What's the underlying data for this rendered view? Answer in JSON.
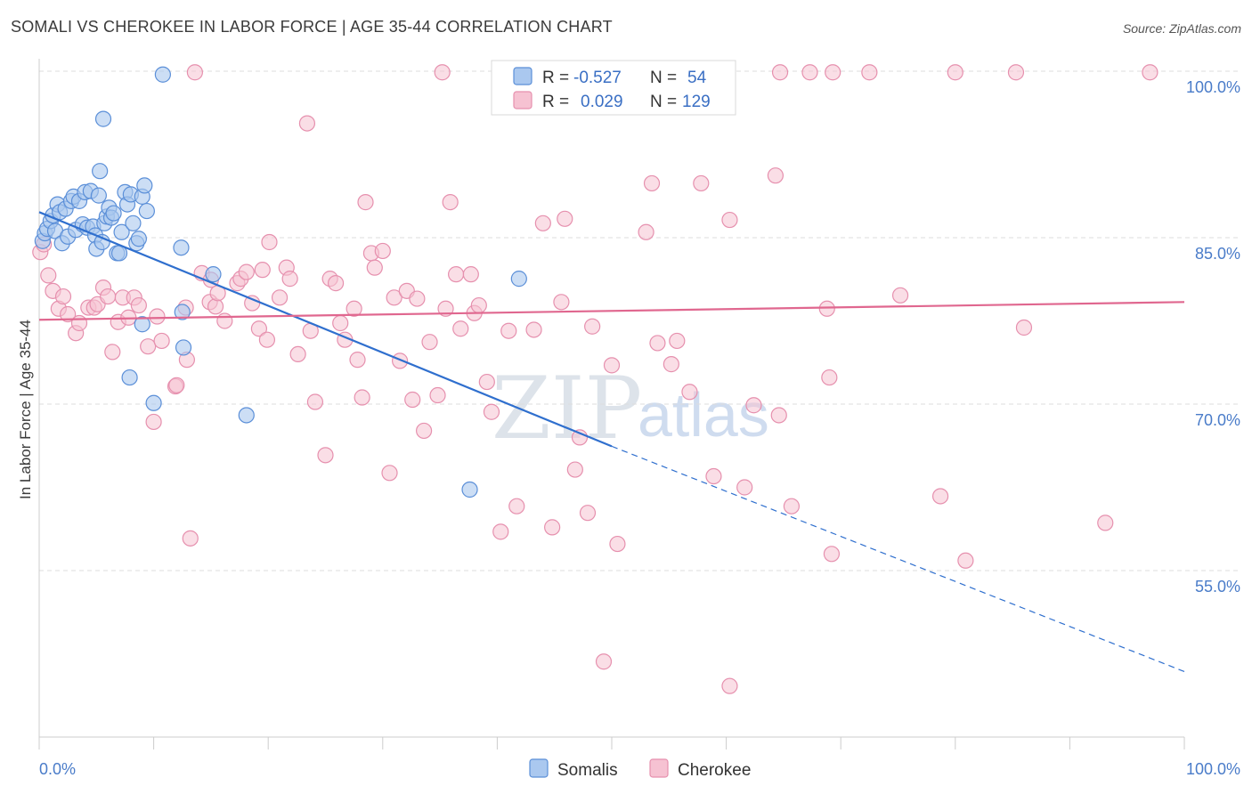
{
  "title": "SOMALI VS CHEROKEE IN LABOR FORCE | AGE 35-44 CORRELATION CHART",
  "source": "Source: ZipAtlas.com",
  "watermark": {
    "zip": "ZIP",
    "atlas": "atlas"
  },
  "legend_top": {
    "rows": [
      {
        "r_label": "R =",
        "r_value": "-0.527",
        "n_label": "N =",
        "n_value": "54"
      },
      {
        "r_label": "R =",
        "r_value": "0.029",
        "n_label": "N =",
        "n_value": "129"
      }
    ]
  },
  "legend_bottom": {
    "somalis": "Somalis",
    "cherokee": "Cherokee"
  },
  "colors": {
    "somalis_fill": "#aac8ef",
    "somalis_stroke": "#5b8fd8",
    "somalis_line": "#2f6fce",
    "cherokee_fill": "#f6c2d2",
    "cherokee_stroke": "#e690ae",
    "cherokee_line": "#e0678f",
    "tick_text": "#4a7cc9",
    "grid": "#dddddd"
  },
  "chart_data": {
    "type": "scatter",
    "title": "SOMALI VS CHEROKEE IN LABOR FORCE | AGE 35-44 CORRELATION CHART",
    "xlabel": "",
    "ylabel": "In Labor Force | Age 35-44",
    "xlim": [
      0,
      100
    ],
    "ylim": [
      40,
      100
    ],
    "x_tick_labels": [
      "0.0%",
      "100.0%"
    ],
    "y_tick_labels": [
      "100.0%",
      "85.0%",
      "70.0%",
      "55.0%"
    ],
    "y_tick_values": [
      100,
      85,
      70,
      55
    ],
    "grid": true,
    "legend_position": "top-center",
    "series": [
      {
        "name": "Somalis",
        "R": -0.527,
        "N": 54,
        "trend": {
          "x0": 0,
          "y0": 87.3,
          "x1": 50,
          "y1": 66.2,
          "dashed_to_x": 100,
          "dashed_to_y": 45.9
        },
        "points": [
          [
            0.3,
            84.7
          ],
          [
            0.5,
            85.4
          ],
          [
            0.7,
            85.8
          ],
          [
            1.0,
            86.5
          ],
          [
            1.2,
            87.0
          ],
          [
            1.4,
            85.6
          ],
          [
            1.6,
            88.0
          ],
          [
            1.8,
            87.3
          ],
          [
            2.0,
            84.5
          ],
          [
            2.3,
            87.6
          ],
          [
            2.5,
            85.1
          ],
          [
            2.8,
            88.3
          ],
          [
            3.0,
            88.7
          ],
          [
            3.2,
            85.7
          ],
          [
            3.5,
            88.3
          ],
          [
            3.8,
            86.2
          ],
          [
            4.0,
            89.1
          ],
          [
            4.2,
            85.9
          ],
          [
            4.5,
            89.2
          ],
          [
            4.7,
            86.0
          ],
          [
            4.9,
            85.2
          ],
          [
            5.0,
            84.0
          ],
          [
            5.2,
            88.8
          ],
          [
            5.5,
            84.6
          ],
          [
            5.7,
            86.3
          ],
          [
            5.9,
            86.9
          ],
          [
            6.1,
            87.7
          ],
          [
            6.3,
            86.8
          ],
          [
            6.5,
            87.2
          ],
          [
            6.8,
            83.6
          ],
          [
            7.0,
            83.6
          ],
          [
            7.2,
            85.5
          ],
          [
            7.5,
            89.1
          ],
          [
            7.7,
            88.0
          ],
          [
            8.0,
            88.9
          ],
          [
            8.2,
            86.3
          ],
          [
            8.5,
            84.5
          ],
          [
            8.7,
            84.9
          ],
          [
            9.0,
            88.7
          ],
          [
            9.2,
            89.7
          ],
          [
            9.4,
            87.4
          ],
          [
            5.6,
            95.7
          ],
          [
            5.3,
            91.0
          ],
          [
            10.8,
            99.7
          ],
          [
            12.4,
            84.1
          ],
          [
            12.5,
            78.3
          ],
          [
            12.6,
            75.1
          ],
          [
            15.2,
            81.7
          ],
          [
            9.0,
            77.2
          ],
          [
            7.9,
            72.4
          ],
          [
            10.0,
            70.1
          ],
          [
            18.1,
            69.0
          ],
          [
            41.9,
            81.3
          ],
          [
            37.6,
            62.3
          ]
        ]
      },
      {
        "name": "Cherokee",
        "R": 0.029,
        "N": 129,
        "trend": {
          "x0": 0,
          "y0": 77.6,
          "x1": 100,
          "y1": 79.2
        },
        "points": [
          [
            0.1,
            83.7
          ],
          [
            0.4,
            84.4
          ],
          [
            0.8,
            81.6
          ],
          [
            1.2,
            80.2
          ],
          [
            1.7,
            78.6
          ],
          [
            2.1,
            79.7
          ],
          [
            2.5,
            78.1
          ],
          [
            3.2,
            76.4
          ],
          [
            3.5,
            77.3
          ],
          [
            4.3,
            78.7
          ],
          [
            4.8,
            78.7
          ],
          [
            5.1,
            79.0
          ],
          [
            5.6,
            80.5
          ],
          [
            6.0,
            79.7
          ],
          [
            6.4,
            74.7
          ],
          [
            6.9,
            77.4
          ],
          [
            7.3,
            79.6
          ],
          [
            7.8,
            77.8
          ],
          [
            8.3,
            79.6
          ],
          [
            8.7,
            78.9
          ],
          [
            9.5,
            75.2
          ],
          [
            10.0,
            68.4
          ],
          [
            10.3,
            77.9
          ],
          [
            10.7,
            75.7
          ],
          [
            11.9,
            71.6
          ],
          [
            12.0,
            71.7
          ],
          [
            12.8,
            78.7
          ],
          [
            12.9,
            74.0
          ],
          [
            13.2,
            57.9
          ],
          [
            14.2,
            81.8
          ],
          [
            14.9,
            79.2
          ],
          [
            15.0,
            81.2
          ],
          [
            15.4,
            78.8
          ],
          [
            15.6,
            80.0
          ],
          [
            16.2,
            77.5
          ],
          [
            17.3,
            80.9
          ],
          [
            17.6,
            81.3
          ],
          [
            18.1,
            81.9
          ],
          [
            18.6,
            79.1
          ],
          [
            19.2,
            76.8
          ],
          [
            19.5,
            82.1
          ],
          [
            19.9,
            75.8
          ],
          [
            20.1,
            84.6
          ],
          [
            21.0,
            79.6
          ],
          [
            21.6,
            82.3
          ],
          [
            21.9,
            81.3
          ],
          [
            22.6,
            74.5
          ],
          [
            23.4,
            95.3
          ],
          [
            23.7,
            76.6
          ],
          [
            24.1,
            70.2
          ],
          [
            25.0,
            65.4
          ],
          [
            25.4,
            81.3
          ],
          [
            25.9,
            80.9
          ],
          [
            26.3,
            77.3
          ],
          [
            26.7,
            75.8
          ],
          [
            27.5,
            78.6
          ],
          [
            27.8,
            74.0
          ],
          [
            28.2,
            70.6
          ],
          [
            28.5,
            88.2
          ],
          [
            29.0,
            83.6
          ],
          [
            29.3,
            82.3
          ],
          [
            30.0,
            83.8
          ],
          [
            30.6,
            63.8
          ],
          [
            31.0,
            79.6
          ],
          [
            31.5,
            73.9
          ],
          [
            32.1,
            80.2
          ],
          [
            32.6,
            70.4
          ],
          [
            33.0,
            79.5
          ],
          [
            33.6,
            67.6
          ],
          [
            34.1,
            75.6
          ],
          [
            34.8,
            70.8
          ],
          [
            35.5,
            78.6
          ],
          [
            35.9,
            88.2
          ],
          [
            36.4,
            81.7
          ],
          [
            36.8,
            76.8
          ],
          [
            37.7,
            81.7
          ],
          [
            38.0,
            78.2
          ],
          [
            38.4,
            78.9
          ],
          [
            39.1,
            72.0
          ],
          [
            39.5,
            69.3
          ],
          [
            40.3,
            58.5
          ],
          [
            41.0,
            76.6
          ],
          [
            41.7,
            60.8
          ],
          [
            43.2,
            76.7
          ],
          [
            44.0,
            86.3
          ],
          [
            44.8,
            58.9
          ],
          [
            45.6,
            79.2
          ],
          [
            45.9,
            86.7
          ],
          [
            46.1,
            100.0
          ],
          [
            46.8,
            64.1
          ],
          [
            47.2,
            67.0
          ],
          [
            47.9,
            60.2
          ],
          [
            48.3,
            77.0
          ],
          [
            49.3,
            46.8
          ],
          [
            50.0,
            73.5
          ],
          [
            50.5,
            57.4
          ],
          [
            53.0,
            85.5
          ],
          [
            53.5,
            89.9
          ],
          [
            54.0,
            75.5
          ],
          [
            55.2,
            73.6
          ],
          [
            55.7,
            75.7
          ],
          [
            56.8,
            71.1
          ],
          [
            57.8,
            89.9
          ],
          [
            58.9,
            63.5
          ],
          [
            60.3,
            86.6
          ],
          [
            61.6,
            62.5
          ],
          [
            62.4,
            69.9
          ],
          [
            64.3,
            90.6
          ],
          [
            64.6,
            69.0
          ],
          [
            65.7,
            60.8
          ],
          [
            68.8,
            78.6
          ],
          [
            69.0,
            72.4
          ],
          [
            69.2,
            56.5
          ],
          [
            75.2,
            79.8
          ],
          [
            78.7,
            61.7
          ],
          [
            80.9,
            55.9
          ],
          [
            86.0,
            76.9
          ],
          [
            93.1,
            59.3
          ],
          [
            13.6,
            99.9
          ],
          [
            35.2,
            99.9
          ],
          [
            64.7,
            99.9
          ],
          [
            67.3,
            99.9
          ],
          [
            69.3,
            99.9
          ],
          [
            72.5,
            99.9
          ],
          [
            80.0,
            99.9
          ],
          [
            85.3,
            99.9
          ],
          [
            97.0,
            99.9
          ],
          [
            57.8,
            99.9
          ],
          [
            60.3,
            44.6
          ]
        ]
      }
    ]
  }
}
